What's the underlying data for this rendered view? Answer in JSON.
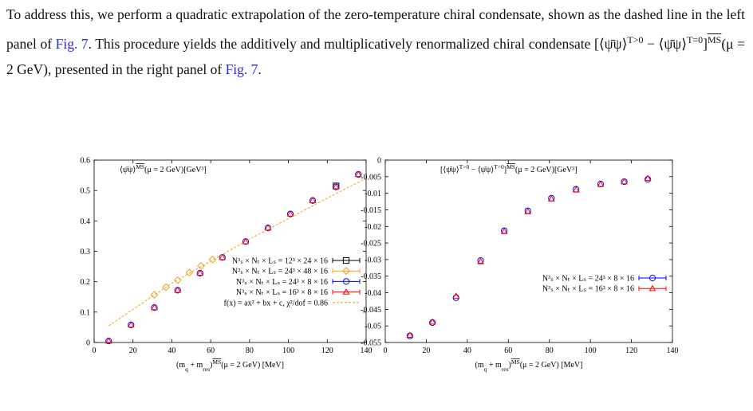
{
  "paragraph": [
    "To address this, we perform a quadratic extrapolation of the zero-temperature chiral condensate, shown as the dashed line in the left panel of ",
    "Fig. 7",
    ". This procedure yields the additively and multiplicatively renormalized chiral condensate ",
    "[⟨ψ̄ψ⟩",
    "T>0",
    " − ⟨ψ̄ψ⟩",
    "T=0",
    "]",
    "MS",
    "(μ = 2 GeV)",
    ", presented in the right panel of ",
    "Fig. 7",
    "."
  ],
  "chart_data": [
    {
      "type": "scatter",
      "annotation": [
        "⟨ψ̄ψ⟩",
        "MS",
        "(μ = 2 GeV)[GeV³]"
      ],
      "xlabel": [
        "(m",
        "q",
        " + m",
        "res",
        ")",
        "MS",
        "(μ = 2 GeV) [MeV]"
      ],
      "xlim": [
        0,
        140
      ],
      "xticks": [
        0,
        20,
        40,
        60,
        80,
        100,
        120,
        140
      ],
      "ylim": [
        0,
        0.6
      ],
      "yticks": [
        0,
        0.1,
        0.2,
        0.3,
        0.4,
        0.5,
        0.6
      ],
      "legend": "lower right",
      "series": [
        {
          "name": "N³ₛ × Nₜ × Lₛ = 12³ × 24 × 16",
          "color": "#000000",
          "marker": "square",
          "x": [
            124.5
          ],
          "values": [
            0.515
          ]
        },
        {
          "name": "N³ₛ × Nₜ × Lₛ = 24³ × 48 × 16",
          "color": "#f0a020",
          "marker": "diamond",
          "x": [
            31,
            37,
            43,
            49,
            55,
            61
          ],
          "values": [
            0.157,
            0.182,
            0.205,
            0.23,
            0.252,
            0.273
          ]
        },
        {
          "name": "N³ₛ × Nₜ × Lₛ = 24³ × 8 × 16",
          "color": "#0000ff",
          "marker": "circle",
          "x": [
            7.5,
            19,
            31,
            43,
            54.5,
            66,
            78,
            89.5,
            101,
            112.5,
            124.5,
            136
          ],
          "values": [
            0.005,
            0.058,
            0.115,
            0.172,
            0.228,
            0.28,
            0.332,
            0.377,
            0.423,
            0.467,
            0.512,
            0.553
          ]
        },
        {
          "name": "N³ₛ × Nₜ × Lₛ = 16³ × 8 × 16",
          "color": "#ff0000",
          "marker": "triangle",
          "x": [
            7.5,
            19,
            31,
            43,
            54.5,
            66,
            78,
            89.5,
            101,
            112.5,
            124.5,
            136
          ],
          "values": [
            0.005,
            0.058,
            0.115,
            0.172,
            0.228,
            0.28,
            0.332,
            0.377,
            0.423,
            0.467,
            0.512,
            0.553
          ]
        },
        {
          "name": "f(x) = ax² + bx + c, χ²/dof = 0.86",
          "color": "#f0a020",
          "marker": "dashed",
          "x": [
            7.5,
            40,
            80,
            120,
            140
          ],
          "values": [
            0.055,
            0.195,
            0.34,
            0.475,
            0.54
          ]
        }
      ]
    },
    {
      "type": "scatter",
      "annotation": [
        "[⟨ψ̄ψ⟩",
        "T>0",
        " − ⟨ψ̄ψ⟩",
        "T=0",
        "]",
        "MS",
        "(μ = 2 GeV)[GeV³]"
      ],
      "xlabel": [
        "(m",
        "q",
        " + m",
        "res",
        ")",
        "MS",
        "(μ = 2 GeV) [MeV]"
      ],
      "xlim": [
        0,
        140
      ],
      "xticks": [
        0,
        20,
        40,
        60,
        80,
        100,
        120,
        140
      ],
      "ylim": [
        -0.055,
        0
      ],
      "yticks": [
        0,
        -0.005,
        -0.01,
        -0.015,
        -0.02,
        -0.025,
        -0.03,
        -0.035,
        -0.04,
        -0.045,
        -0.05,
        -0.055
      ],
      "legend": "lower right",
      "series": [
        {
          "name": "N³ₛ × Nₜ × Lₛ = 24³ × 8 × 16",
          "color": "#0000ff",
          "marker": "circle",
          "x": [
            12,
            23,
            34.5,
            46.5,
            58,
            69.5,
            81,
            93,
            105,
            116.5,
            128
          ],
          "values": [
            -0.053,
            -0.049,
            -0.0415,
            -0.0303,
            -0.0213,
            -0.0153,
            -0.0115,
            -0.0088,
            -0.0072,
            -0.0065,
            -0.0058
          ]
        },
        {
          "name": "N³ₛ × Nₜ × Lₛ = 16³ × 8 × 16",
          "color": "#ff0000",
          "marker": "triangle",
          "x": [
            12,
            23,
            34.5,
            46.5,
            58,
            69.5,
            81,
            93,
            105,
            116.5,
            128
          ],
          "values": [
            -0.0528,
            -0.0488,
            -0.041,
            -0.0306,
            -0.0215,
            -0.0155,
            -0.0117,
            -0.009,
            -0.0073,
            -0.0065,
            -0.0055
          ]
        }
      ]
    }
  ]
}
